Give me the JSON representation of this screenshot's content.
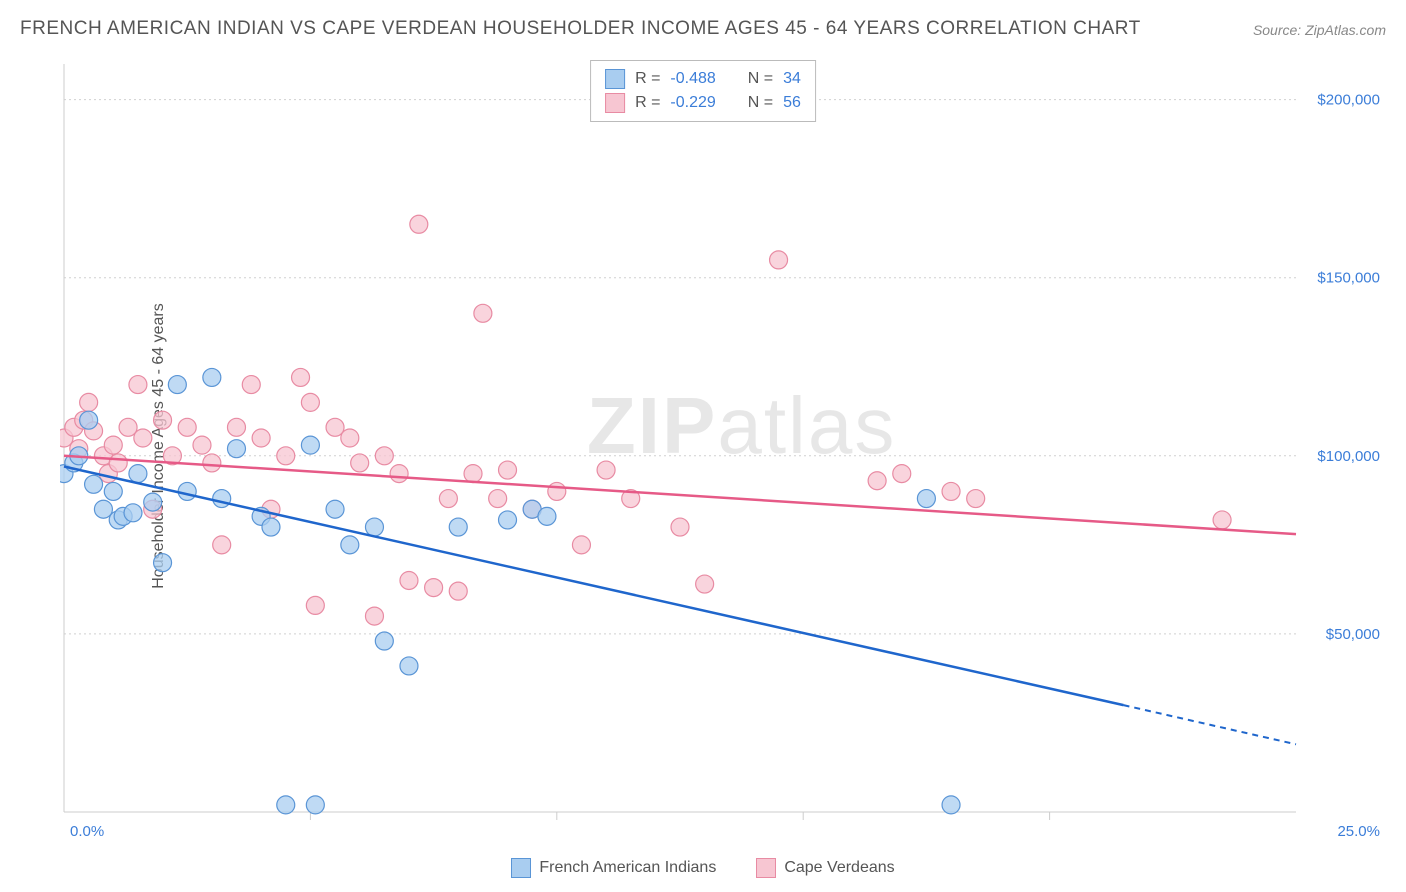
{
  "title": "FRENCH AMERICAN INDIAN VS CAPE VERDEAN HOUSEHOLDER INCOME AGES 45 - 64 YEARS CORRELATION CHART",
  "source": "Source: ZipAtlas.com",
  "y_axis_label": "Householder Income Ages 45 - 64 years",
  "watermark_pre": "ZIP",
  "watermark_post": "atlas",
  "series": {
    "a": {
      "name": "French American Indians",
      "fill": "#a9cdf0",
      "stroke": "#5a95d6",
      "line_stroke": "#1f66cc",
      "r_value": "-0.488",
      "n_value": "34",
      "trend": {
        "x1": 0.0,
        "y1": 97000,
        "x2": 21.5,
        "y2": 30000,
        "x2_dash": 25.0,
        "y2_dash": 19000
      },
      "points": [
        [
          0.0,
          95000
        ],
        [
          0.2,
          98000
        ],
        [
          0.3,
          100000
        ],
        [
          0.5,
          110000
        ],
        [
          0.6,
          92000
        ],
        [
          0.8,
          85000
        ],
        [
          1.0,
          90000
        ],
        [
          1.1,
          82000
        ],
        [
          1.2,
          83000
        ],
        [
          1.4,
          84000
        ],
        [
          1.5,
          95000
        ],
        [
          1.8,
          87000
        ],
        [
          2.0,
          70000
        ],
        [
          2.3,
          120000
        ],
        [
          2.5,
          90000
        ],
        [
          3.0,
          122000
        ],
        [
          3.2,
          88000
        ],
        [
          3.5,
          102000
        ],
        [
          4.0,
          83000
        ],
        [
          4.2,
          80000
        ],
        [
          4.5,
          2000
        ],
        [
          5.0,
          103000
        ],
        [
          5.1,
          2000
        ],
        [
          5.5,
          85000
        ],
        [
          5.8,
          75000
        ],
        [
          6.3,
          80000
        ],
        [
          6.5,
          48000
        ],
        [
          7.0,
          41000
        ],
        [
          8.0,
          80000
        ],
        [
          9.0,
          82000
        ],
        [
          9.5,
          85000
        ],
        [
          9.8,
          83000
        ],
        [
          17.5,
          88000
        ],
        [
          18.0,
          2000
        ]
      ]
    },
    "b": {
      "name": "Cape Verdeans",
      "fill": "#f7c6d2",
      "stroke": "#e88ba3",
      "line_stroke": "#e65a87",
      "r_value": "-0.229",
      "n_value": "56",
      "trend": {
        "x1": 0.0,
        "y1": 100000,
        "x2": 25.0,
        "y2": 78000
      },
      "points": [
        [
          0.0,
          105000
        ],
        [
          0.2,
          108000
        ],
        [
          0.3,
          102000
        ],
        [
          0.4,
          110000
        ],
        [
          0.5,
          115000
        ],
        [
          0.6,
          107000
        ],
        [
          0.8,
          100000
        ],
        [
          0.9,
          95000
        ],
        [
          1.0,
          103000
        ],
        [
          1.1,
          98000
        ],
        [
          1.3,
          108000
        ],
        [
          1.5,
          120000
        ],
        [
          1.6,
          105000
        ],
        [
          1.8,
          85000
        ],
        [
          2.0,
          110000
        ],
        [
          2.2,
          100000
        ],
        [
          2.5,
          108000
        ],
        [
          2.8,
          103000
        ],
        [
          3.0,
          98000
        ],
        [
          3.2,
          75000
        ],
        [
          3.5,
          108000
        ],
        [
          3.8,
          120000
        ],
        [
          4.0,
          105000
        ],
        [
          4.2,
          85000
        ],
        [
          4.5,
          100000
        ],
        [
          4.8,
          122000
        ],
        [
          5.0,
          115000
        ],
        [
          5.1,
          58000
        ],
        [
          5.5,
          108000
        ],
        [
          5.8,
          105000
        ],
        [
          6.0,
          98000
        ],
        [
          6.3,
          55000
        ],
        [
          6.5,
          100000
        ],
        [
          6.8,
          95000
        ],
        [
          7.0,
          65000
        ],
        [
          7.2,
          165000
        ],
        [
          7.5,
          63000
        ],
        [
          7.8,
          88000
        ],
        [
          8.0,
          62000
        ],
        [
          8.3,
          95000
        ],
        [
          8.5,
          140000
        ],
        [
          8.8,
          88000
        ],
        [
          9.0,
          96000
        ],
        [
          9.5,
          85000
        ],
        [
          10.0,
          90000
        ],
        [
          10.5,
          75000
        ],
        [
          11.0,
          96000
        ],
        [
          11.5,
          88000
        ],
        [
          12.5,
          80000
        ],
        [
          13.0,
          64000
        ],
        [
          14.5,
          155000
        ],
        [
          16.5,
          93000
        ],
        [
          17.0,
          95000
        ],
        [
          18.0,
          90000
        ],
        [
          18.5,
          88000
        ],
        [
          23.5,
          82000
        ]
      ]
    }
  },
  "chart": {
    "xlim": [
      0,
      25
    ],
    "ylim": [
      0,
      210000
    ],
    "y_ticks": [
      50000,
      100000,
      150000,
      200000
    ],
    "y_tick_labels": [
      "$50,000",
      "$100,000",
      "$150,000",
      "$200,000"
    ],
    "x_tick_left": "0.0%",
    "x_tick_right": "25.0%",
    "x_minor_ticks": [
      5,
      10,
      15,
      20
    ],
    "marker_radius": 9,
    "marker_opacity": 0.75,
    "grid_color": "#d0d0d0",
    "background": "#ffffff",
    "label_color": "#3b7dd8"
  },
  "corr_box": {
    "r_label": "R =",
    "n_label": "N ="
  }
}
